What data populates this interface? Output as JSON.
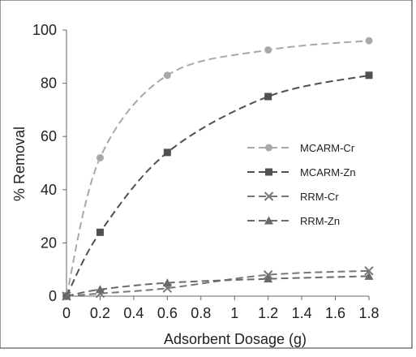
{
  "chart_data": {
    "type": "line",
    "xlabel": "Adsorbent Dosage (g)",
    "ylabel": "% Removal",
    "xlim": [
      0,
      1.8
    ],
    "ylim": [
      0,
      100
    ],
    "x_ticks": [
      "0",
      "0.2",
      "0.4",
      "0.6",
      "0.8",
      "1",
      "1.2",
      "1.4",
      "1.6",
      "1.8"
    ],
    "y_ticks": [
      "0",
      "20",
      "40",
      "60",
      "80",
      "100"
    ],
    "grid": false,
    "legend_position": "right",
    "series": [
      {
        "name": "MCARM-Cr",
        "marker": "circle",
        "color": "#a8a8a8",
        "x": [
          0,
          0.2,
          0.6,
          1.2,
          1.8
        ],
        "y": [
          0,
          52,
          83,
          92.5,
          96
        ]
      },
      {
        "name": "MCARM-Zn",
        "marker": "square",
        "color": "#505050",
        "x": [
          0,
          0.2,
          0.6,
          1.2,
          1.8
        ],
        "y": [
          0,
          24,
          54,
          75,
          83
        ]
      },
      {
        "name": "RRM-Cr",
        "marker": "x",
        "color": "#777777",
        "x": [
          0,
          0.2,
          0.6,
          1.2,
          1.8
        ],
        "y": [
          0,
          1,
          3,
          8,
          9.5
        ]
      },
      {
        "name": "RRM-Zn",
        "marker": "triangle",
        "color": "#6a6a6a",
        "x": [
          0,
          0.2,
          0.6,
          1.2,
          1.8
        ],
        "y": [
          0,
          2.5,
          5,
          6.5,
          7.5
        ]
      }
    ]
  }
}
